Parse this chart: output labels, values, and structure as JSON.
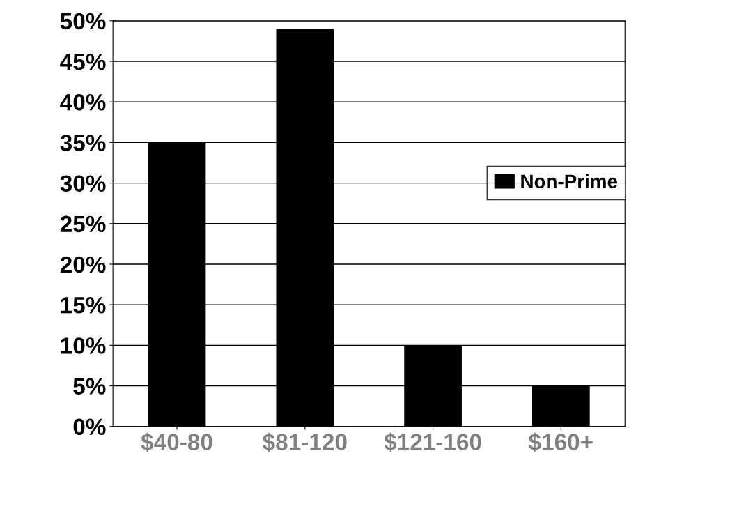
{
  "chart_data": {
    "type": "bar",
    "categories": [
      "$40-80",
      "$81-120",
      "$121-160",
      "$160+"
    ],
    "series": [
      {
        "name": "Non-Prime",
        "color": "#000000",
        "values": [
          35,
          49,
          10,
          5
        ]
      }
    ],
    "ylim": [
      0,
      50
    ],
    "yticks": [
      {
        "value": 0,
        "label": "0%"
      },
      {
        "value": 5,
        "label": "5%"
      },
      {
        "value": 10,
        "label": "10%"
      },
      {
        "value": 15,
        "label": "15%"
      },
      {
        "value": 20,
        "label": "20%"
      },
      {
        "value": 25,
        "label": "25%"
      },
      {
        "value": 30,
        "label": "30%"
      },
      {
        "value": 35,
        "label": "35%"
      },
      {
        "value": 40,
        "label": "40%"
      },
      {
        "value": 45,
        "label": "45%"
      },
      {
        "value": 50,
        "label": "50%"
      }
    ],
    "grid": "y",
    "legend": "right"
  }
}
